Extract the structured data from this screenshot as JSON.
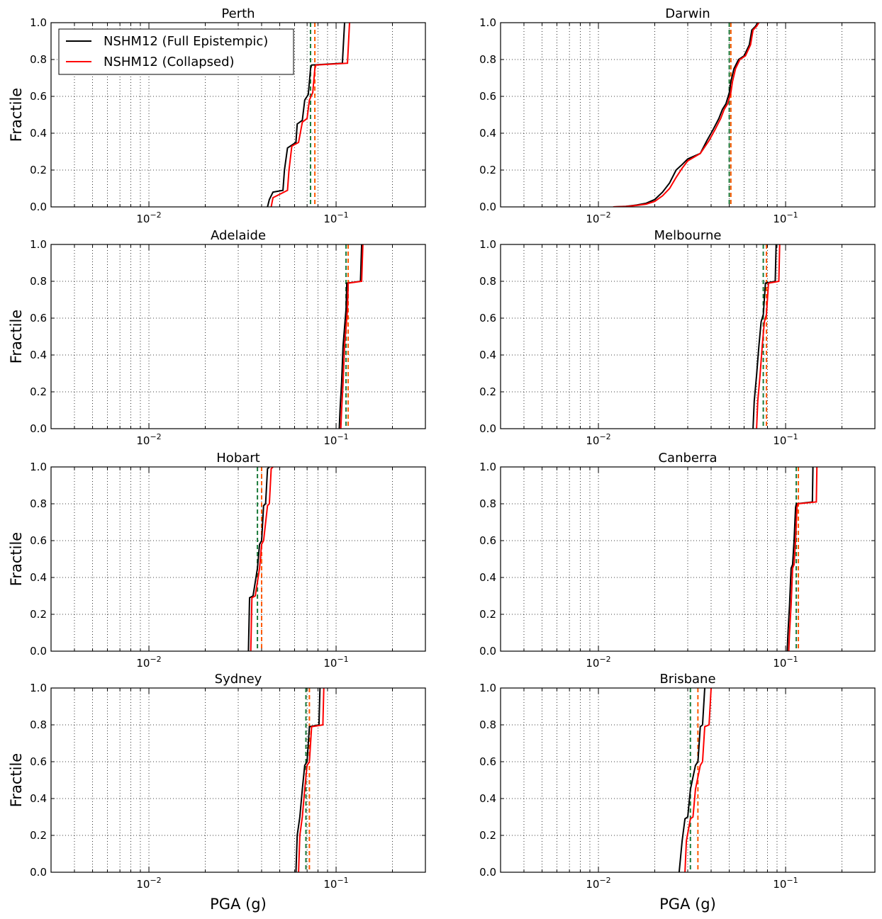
{
  "figure": {
    "ylabel": "Fractile",
    "xlabel": "PGA (g)",
    "legend": [
      {
        "label": "NSHM12 (Full Epistempic)",
        "color": "#000000"
      },
      {
        "label": "NSHM12 (Collapsed)",
        "color": "#ff0000"
      }
    ],
    "mean_line_colors": [
      "#1a7a3a",
      "#ff5a00"
    ]
  },
  "chart_data": [
    {
      "type": "line",
      "title": "Perth",
      "xscale": "log",
      "xlim": [
        0.003,
        0.3
      ],
      "ylim": [
        0,
        1
      ],
      "x_ticks": [
        "10-2",
        "10-1"
      ],
      "y_ticks": [
        "0.0",
        "0.2",
        "0.4",
        "0.6",
        "0.8",
        "1.0"
      ],
      "grid": true,
      "series": [
        {
          "name": "NSHM12 (Full Epistempic)",
          "x": [
            0.043,
            0.044,
            0.046,
            0.052,
            0.053,
            0.055,
            0.061,
            0.062,
            0.066,
            0.068,
            0.071,
            0.073,
            0.074,
            0.108,
            0.111
          ],
          "y": [
            0,
            0.04,
            0.08,
            0.09,
            0.2,
            0.32,
            0.35,
            0.45,
            0.47,
            0.58,
            0.61,
            0.75,
            0.77,
            0.78,
            1.0
          ]
        },
        {
          "name": "NSHM12 (Collapsed)",
          "x": [
            0.045,
            0.046,
            0.055,
            0.056,
            0.058,
            0.063,
            0.066,
            0.07,
            0.072,
            0.075,
            0.077,
            0.078,
            0.115,
            0.118
          ],
          "y": [
            0,
            0.05,
            0.09,
            0.2,
            0.33,
            0.35,
            0.46,
            0.48,
            0.58,
            0.62,
            0.75,
            0.77,
            0.78,
            1.0
          ]
        }
      ],
      "mean_lines": [
        0.073,
        0.077
      ]
    },
    {
      "type": "line",
      "title": "Darwin",
      "xscale": "log",
      "xlim": [
        0.003,
        0.3
      ],
      "ylim": [
        0,
        1
      ],
      "x_ticks": [
        "10-2",
        "10-1"
      ],
      "y_ticks": [
        "0.0",
        "0.2",
        "0.4",
        "0.6",
        "0.8",
        "1.0"
      ],
      "grid": true,
      "series": [
        {
          "name": "NSHM12 (Full Epistempic)",
          "x": [
            0.012,
            0.014,
            0.016,
            0.018,
            0.02,
            0.022,
            0.024,
            0.026,
            0.028,
            0.03,
            0.035,
            0.038,
            0.041,
            0.044,
            0.046,
            0.048,
            0.05,
            0.051,
            0.053,
            0.056,
            0.06,
            0.064,
            0.066,
            0.069,
            0.071
          ],
          "y": [
            0,
            0.003,
            0.01,
            0.02,
            0.04,
            0.08,
            0.13,
            0.2,
            0.23,
            0.26,
            0.29,
            0.36,
            0.42,
            0.48,
            0.53,
            0.56,
            0.62,
            0.68,
            0.75,
            0.8,
            0.82,
            0.88,
            0.96,
            0.98,
            1.0
          ]
        },
        {
          "name": "NSHM12 (Collapsed)",
          "x": [
            0.012,
            0.014,
            0.016,
            0.018,
            0.02,
            0.022,
            0.024,
            0.026,
            0.028,
            0.03,
            0.035,
            0.039,
            0.042,
            0.045,
            0.047,
            0.049,
            0.051,
            0.052,
            0.054,
            0.057,
            0.061,
            0.065,
            0.067,
            0.07,
            0.072
          ],
          "y": [
            0,
            0.002,
            0.008,
            0.015,
            0.03,
            0.06,
            0.1,
            0.16,
            0.21,
            0.25,
            0.29,
            0.36,
            0.42,
            0.48,
            0.53,
            0.56,
            0.62,
            0.68,
            0.75,
            0.8,
            0.82,
            0.88,
            0.96,
            0.98,
            1.0
          ]
        }
      ],
      "mean_lines": [
        0.05,
        0.051
      ]
    },
    {
      "type": "line",
      "title": "Adelaide",
      "xscale": "log",
      "xlim": [
        0.003,
        0.3
      ],
      "ylim": [
        0,
        1
      ],
      "x_ticks": [
        "10-2",
        "10-1"
      ],
      "y_ticks": [
        "0.0",
        "0.2",
        "0.4",
        "0.6",
        "0.8",
        "1.0"
      ],
      "grid": true,
      "series": [
        {
          "name": "NSHM12 (Full Epistempic)",
          "x": [
            0.104,
            0.105,
            0.107,
            0.109,
            0.111,
            0.113,
            0.114,
            0.135,
            0.137
          ],
          "y": [
            0,
            0.1,
            0.25,
            0.45,
            0.55,
            0.65,
            0.79,
            0.8,
            1.0
          ]
        },
        {
          "name": "NSHM12 (Collapsed)",
          "x": [
            0.106,
            0.107,
            0.109,
            0.111,
            0.113,
            0.115,
            0.116,
            0.137,
            0.139
          ],
          "y": [
            0,
            0.1,
            0.25,
            0.45,
            0.55,
            0.65,
            0.79,
            0.8,
            1.0
          ]
        }
      ],
      "mean_lines": [
        0.113,
        0.116
      ]
    },
    {
      "type": "line",
      "title": "Melbourne",
      "xscale": "log",
      "xlim": [
        0.003,
        0.3
      ],
      "ylim": [
        0,
        1
      ],
      "x_ticks": [
        "10-2",
        "10-1"
      ],
      "y_ticks": [
        "0.0",
        "0.2",
        "0.4",
        "0.6",
        "0.8",
        "1.0"
      ],
      "grid": true,
      "series": [
        {
          "name": "NSHM12 (Full Epistempic)",
          "x": [
            0.067,
            0.068,
            0.07,
            0.072,
            0.074,
            0.076,
            0.078,
            0.088,
            0.089
          ],
          "y": [
            0,
            0.15,
            0.29,
            0.45,
            0.58,
            0.62,
            0.79,
            0.8,
            1.0
          ]
        },
        {
          "name": "NSHM12 (Collapsed)",
          "x": [
            0.07,
            0.071,
            0.073,
            0.075,
            0.077,
            0.079,
            0.081,
            0.092,
            0.093
          ],
          "y": [
            0,
            0.15,
            0.29,
            0.45,
            0.58,
            0.62,
            0.79,
            0.8,
            1.0
          ]
        }
      ],
      "mean_lines": [
        0.076,
        0.079
      ]
    },
    {
      "type": "line",
      "title": "Hobart",
      "xscale": "log",
      "xlim": [
        0.003,
        0.3
      ],
      "ylim": [
        0,
        1
      ],
      "x_ticks": [
        "10-2",
        "10-1"
      ],
      "y_ticks": [
        "0.0",
        "0.2",
        "0.4",
        "0.6",
        "0.8",
        "1.0"
      ],
      "grid": true,
      "series": [
        {
          "name": "NSHM12 (Full Epistempic)",
          "x": [
            0.034,
            0.0345,
            0.036,
            0.038,
            0.039,
            0.04,
            0.041,
            0.042,
            0.043,
            0.044
          ],
          "y": [
            0,
            0.29,
            0.3,
            0.45,
            0.58,
            0.6,
            0.79,
            0.8,
            0.99,
            1.0
          ]
        },
        {
          "name": "NSHM12 (Collapsed)",
          "x": [
            0.035,
            0.0355,
            0.037,
            0.039,
            0.04,
            0.041,
            0.043,
            0.044,
            0.045,
            0.046
          ],
          "y": [
            0,
            0.29,
            0.3,
            0.45,
            0.58,
            0.6,
            0.79,
            0.8,
            0.99,
            1.0
          ]
        }
      ],
      "mean_lines": [
        0.038,
        0.04
      ]
    },
    {
      "type": "line",
      "title": "Canberra",
      "xscale": "log",
      "xlim": [
        0.003,
        0.3
      ],
      "ylim": [
        0,
        1
      ],
      "x_ticks": [
        "10-2",
        "10-1"
      ],
      "y_ticks": [
        "0.0",
        "0.2",
        "0.4",
        "0.6",
        "0.8",
        "1.0"
      ],
      "grid": true,
      "series": [
        {
          "name": "NSHM12 (Full Epistempic)",
          "x": [
            0.102,
            0.103,
            0.105,
            0.107,
            0.109,
            0.111,
            0.113,
            0.114,
            0.139,
            0.14
          ],
          "y": [
            0,
            0.1,
            0.25,
            0.45,
            0.47,
            0.6,
            0.78,
            0.8,
            0.81,
            1.0
          ]
        },
        {
          "name": "NSHM12 (Collapsed)",
          "x": [
            0.104,
            0.105,
            0.107,
            0.109,
            0.111,
            0.113,
            0.115,
            0.116,
            0.146,
            0.147
          ],
          "y": [
            0,
            0.1,
            0.25,
            0.45,
            0.47,
            0.6,
            0.78,
            0.8,
            0.81,
            1.0
          ]
        }
      ],
      "mean_lines": [
        0.114,
        0.117
      ]
    },
    {
      "type": "line",
      "title": "Sydney",
      "xscale": "log",
      "xlim": [
        0.003,
        0.3
      ],
      "ylim": [
        0,
        1
      ],
      "x_ticks": [
        "10-2",
        "10-1"
      ],
      "y_ticks": [
        "0.0",
        "0.2",
        "0.4",
        "0.6",
        "0.8",
        "1.0"
      ],
      "grid": true,
      "series": [
        {
          "name": "NSHM12 (Full Epistempic)",
          "x": [
            0.061,
            0.062,
            0.064,
            0.066,
            0.068,
            0.07,
            0.072,
            0.081,
            0.082
          ],
          "y": [
            0,
            0.2,
            0.3,
            0.45,
            0.58,
            0.6,
            0.79,
            0.8,
            1.0
          ]
        },
        {
          "name": "NSHM12 (Collapsed)",
          "x": [
            0.063,
            0.064,
            0.066,
            0.068,
            0.07,
            0.072,
            0.074,
            0.085,
            0.086
          ],
          "y": [
            0,
            0.2,
            0.3,
            0.45,
            0.58,
            0.6,
            0.79,
            0.8,
            1.0
          ]
        }
      ],
      "mean_lines": [
        0.069,
        0.072
      ]
    },
    {
      "type": "line",
      "title": "Brisbane",
      "xscale": "log",
      "xlim": [
        0.003,
        0.3
      ],
      "ylim": [
        0,
        1
      ],
      "x_ticks": [
        "10-2",
        "10-1"
      ],
      "y_ticks": [
        "0.0",
        "0.2",
        "0.4",
        "0.6",
        "0.8",
        "1.0"
      ],
      "grid": true,
      "series": [
        {
          "name": "NSHM12 (Full Epistempic)",
          "x": [
            0.027,
            0.028,
            0.029,
            0.03,
            0.031,
            0.033,
            0.034,
            0.035,
            0.036,
            0.037
          ],
          "y": [
            0,
            0.17,
            0.29,
            0.3,
            0.45,
            0.58,
            0.6,
            0.79,
            0.8,
            1.0
          ]
        },
        {
          "name": "NSHM12 (Collapsed)",
          "x": [
            0.029,
            0.0295,
            0.031,
            0.032,
            0.033,
            0.035,
            0.036,
            0.037,
            0.039,
            0.04
          ],
          "y": [
            0,
            0.17,
            0.29,
            0.3,
            0.45,
            0.58,
            0.6,
            0.79,
            0.8,
            1.0
          ]
        }
      ],
      "mean_lines": [
        0.031,
        0.034
      ]
    }
  ]
}
